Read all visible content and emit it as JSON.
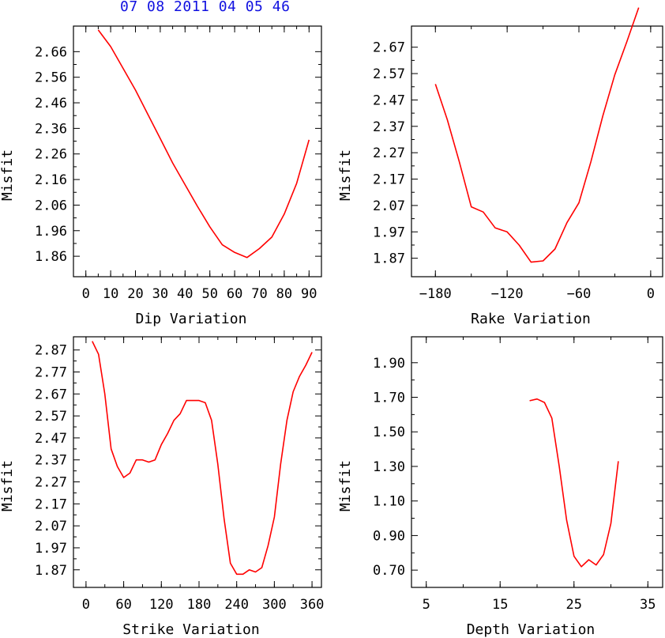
{
  "header": {
    "event_label": "07 08 2011 04 05 46"
  },
  "colors": {
    "line": "#ff0000",
    "axis": "#000000",
    "title": "#1010e0"
  },
  "chart_data": [
    {
      "type": "line",
      "xlabel": "Dip    Variation",
      "ylabel": "Misfit",
      "xlim": [
        -5,
        95
      ],
      "ylim": [
        1.78,
        2.76
      ],
      "xticks": [
        0,
        10,
        20,
        30,
        40,
        50,
        60,
        70,
        80,
        90
      ],
      "yticks": [
        1.86,
        1.96,
        2.06,
        2.16,
        2.26,
        2.36,
        2.46,
        2.56,
        2.66
      ],
      "ytick_labels": [
        "1.86",
        "1.96",
        "2.06",
        "2.16",
        "2.26",
        "2.36",
        "2.46",
        "2.56",
        "2.66"
      ],
      "x": [
        5,
        10,
        15,
        20,
        25,
        30,
        35,
        40,
        45,
        50,
        55,
        60,
        65,
        70,
        75,
        80,
        85,
        90
      ],
      "y": [
        2.745,
        2.68,
        2.595,
        2.51,
        2.415,
        2.32,
        2.225,
        2.14,
        2.055,
        1.975,
        1.905,
        1.875,
        1.855,
        1.89,
        1.935,
        2.025,
        2.145,
        2.315
      ]
    },
    {
      "type": "line",
      "xlabel": "Rake   Variation",
      "ylabel": "Misfit",
      "xlim": [
        -200,
        10
      ],
      "ylim": [
        1.8,
        2.75
      ],
      "xticks": [
        -180,
        -120,
        -60,
        0
      ],
      "yticks": [
        1.87,
        1.97,
        2.07,
        2.17,
        2.27,
        2.37,
        2.47,
        2.57,
        2.67
      ],
      "ytick_labels": [
        "1.87",
        "1.97",
        "2.07",
        "2.17",
        "2.27",
        "2.37",
        "2.47",
        "2.57",
        "2.67"
      ],
      "x": [
        -180,
        -170,
        -160,
        -150,
        -140,
        -130,
        -120,
        -110,
        -100,
        -90,
        -80,
        -70,
        -60,
        -50,
        -40,
        -30,
        -20,
        -10
      ],
      "y": [
        2.53,
        2.395,
        2.235,
        2.065,
        2.045,
        1.985,
        1.97,
        1.92,
        1.855,
        1.86,
        1.905,
        2.005,
        2.08,
        2.235,
        2.41,
        2.565,
        2.69,
        2.82
      ]
    },
    {
      "type": "line",
      "xlabel": "Strike Variation",
      "ylabel": "Misfit",
      "xlim": [
        -20,
        375
      ],
      "ylim": [
        1.79,
        2.93
      ],
      "xticks": [
        0,
        60,
        120,
        180,
        240,
        300,
        360
      ],
      "yticks": [
        1.87,
        1.97,
        2.07,
        2.17,
        2.27,
        2.37,
        2.47,
        2.57,
        2.67,
        2.77,
        2.87
      ],
      "ytick_labels": [
        "1.87",
        "1.97",
        "2.07",
        "2.17",
        "2.27",
        "2.37",
        "2.47",
        "2.57",
        "2.67",
        "2.77",
        "2.87"
      ],
      "x": [
        10,
        20,
        30,
        40,
        50,
        60,
        70,
        80,
        90,
        100,
        110,
        120,
        130,
        140,
        150,
        160,
        170,
        180,
        190,
        200,
        210,
        220,
        230,
        240,
        250,
        260,
        270,
        280,
        290,
        300,
        310,
        320,
        330,
        340,
        350,
        360
      ],
      "y": [
        2.91,
        2.85,
        2.67,
        2.42,
        2.34,
        2.29,
        2.31,
        2.37,
        2.37,
        2.36,
        2.37,
        2.44,
        2.49,
        2.55,
        2.58,
        2.64,
        2.64,
        2.64,
        2.63,
        2.55,
        2.35,
        2.1,
        1.9,
        1.85,
        1.85,
        1.87,
        1.86,
        1.88,
        1.98,
        2.11,
        2.35,
        2.55,
        2.68,
        2.75,
        2.8,
        2.86
      ]
    },
    {
      "type": "line",
      "xlabel": "Depth  Variation",
      "ylabel": "Misfit",
      "xlim": [
        3,
        37
      ],
      "ylim": [
        0.6,
        2.05
      ],
      "xticks": [
        5,
        15,
        25,
        35
      ],
      "yticks": [
        0.7,
        0.9,
        1.1,
        1.3,
        1.5,
        1.7,
        1.9
      ],
      "ytick_labels": [
        "0.70",
        "0.90",
        "1.10",
        "1.30",
        "1.50",
        "1.70",
        "1.90"
      ],
      "x": [
        19,
        20,
        21,
        22,
        23,
        24,
        25,
        26,
        27,
        28,
        29,
        30,
        31
      ],
      "y": [
        1.68,
        1.69,
        1.67,
        1.58,
        1.3,
        0.99,
        0.78,
        0.72,
        0.76,
        0.73,
        0.79,
        0.97,
        1.33
      ]
    }
  ]
}
